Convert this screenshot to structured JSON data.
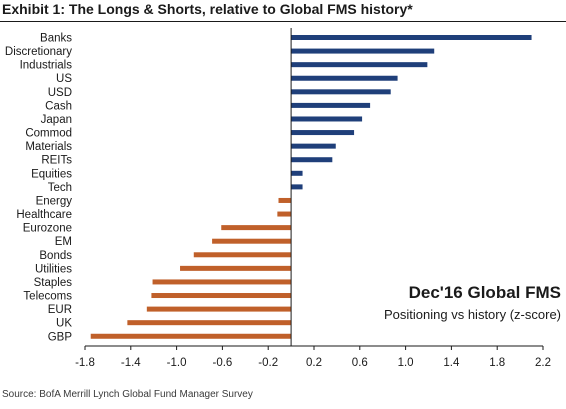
{
  "title": "Exhibit 1: The Longs & Shorts, relative to Global FMS history*",
  "source": "Source: BofA Merrill Lynch Global Fund Manager Survey",
  "colors": {
    "positive": "#1f3f7a",
    "negative": "#c0602a",
    "axis": "#1a1a1a"
  },
  "chart_data": {
    "type": "bar",
    "orientation": "horizontal",
    "categories": [
      "Banks",
      "Discretionary",
      "Industrials",
      "US",
      "USD",
      "Cash",
      "Japan",
      "Commod",
      "Materials",
      "REITs",
      "Equities",
      "Tech",
      "Energy",
      "Healthcare",
      "Eurozone",
      "EM",
      "Bonds",
      "Utilities",
      "Staples",
      "Telecoms",
      "EUR",
      "UK",
      "GBP"
    ],
    "values": [
      2.1,
      1.25,
      1.19,
      0.93,
      0.87,
      0.69,
      0.62,
      0.55,
      0.39,
      0.36,
      0.1,
      0.1,
      -0.11,
      -0.12,
      -0.61,
      -0.69,
      -0.85,
      -0.97,
      -1.21,
      -1.22,
      -1.26,
      -1.43,
      -1.75
    ],
    "xlim": [
      -1.8,
      2.2
    ],
    "xticks": [
      "-1.8",
      "-1.4",
      "-1.0",
      "-0.6",
      "-0.2",
      "0.2",
      "0.6",
      "1.0",
      "1.4",
      "1.8",
      "2.2"
    ],
    "xlabel": "",
    "ylabel": "",
    "grid": false,
    "legend": "none",
    "annotation": {
      "title": "Dec'16 Global FMS",
      "subtitle": "Positioning vs history (z-score)"
    }
  }
}
